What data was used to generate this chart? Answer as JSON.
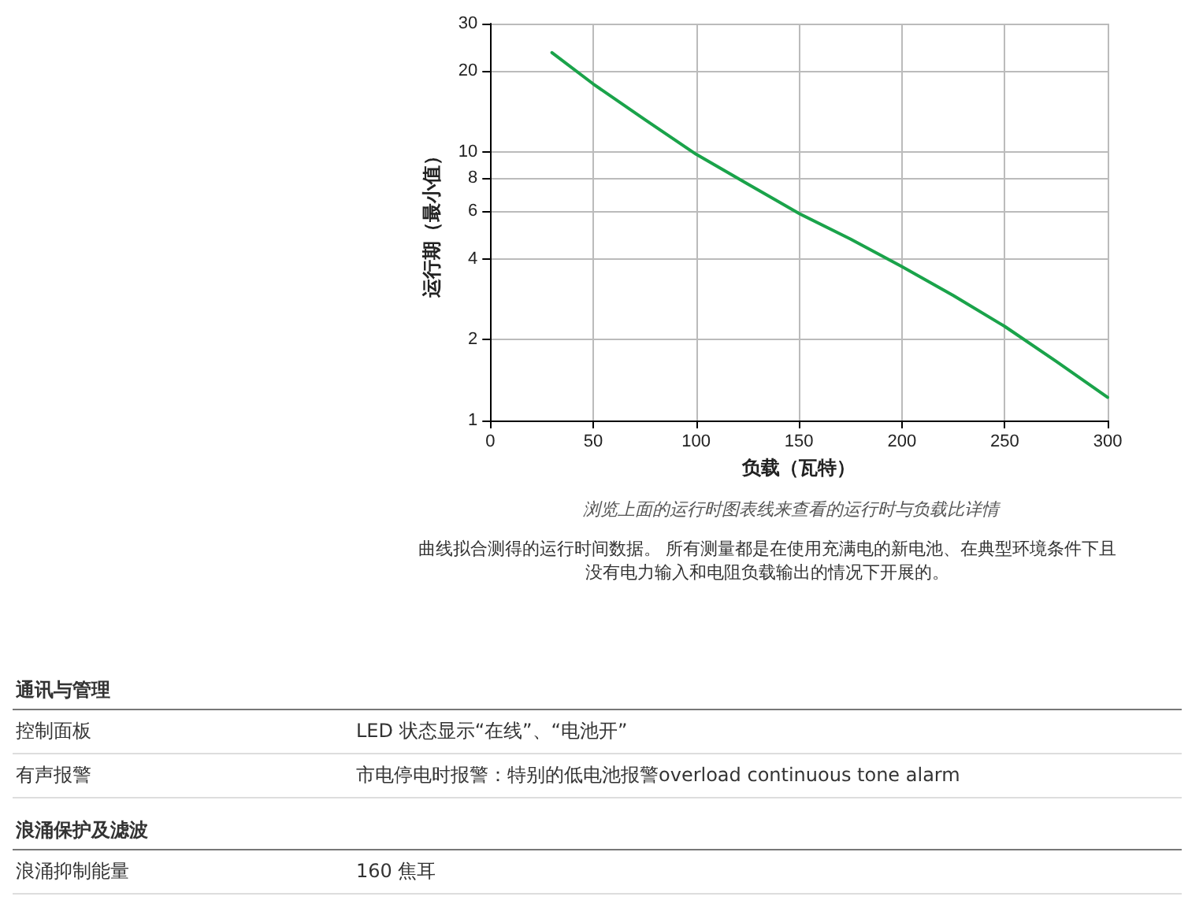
{
  "chart_data": {
    "type": "line",
    "xlabel": "负载（瓦特）",
    "ylabel": "运行期（最小值）",
    "x": [
      30,
      50,
      75,
      100,
      125,
      150,
      175,
      200,
      225,
      250,
      275,
      300
    ],
    "series": [
      {
        "color": "#1aa34a",
        "values": [
          23.4,
          17.9,
          13.2,
          9.8,
          7.6,
          5.9,
          4.74,
          3.74,
          2.92,
          2.24,
          1.66,
          1.22
        ]
      }
    ],
    "xlim": [
      0,
      300
    ],
    "xticks": [
      0,
      50,
      100,
      150,
      200,
      250,
      300
    ],
    "ylim": [
      1,
      30
    ],
    "yticks": [
      1,
      2,
      4,
      6,
      8,
      10,
      20,
      30
    ],
    "log": "y",
    "grid": true,
    "marker": "none",
    "line_style": "solid",
    "annotations": [
      "浏览上面的运行时图表线来查看的运行时与负载比详情",
      "曲线拟合测得的运行时间数据。 所有测量都是在使用充满电的新电池、在典型环境条件下且没有电力输入和电阻负载输出的情况下开展的。",
      "通讯与管理",
      "控制面板",
      "LED 状态显示“在线”、“电池开”",
      "有声报警",
      "市电停电时报警：特别的低电池报警overload continuous tone alarm",
      "浪涌保护及滤波",
      "浪涌抑制能量",
      "160 焦耳"
    ]
  }
}
